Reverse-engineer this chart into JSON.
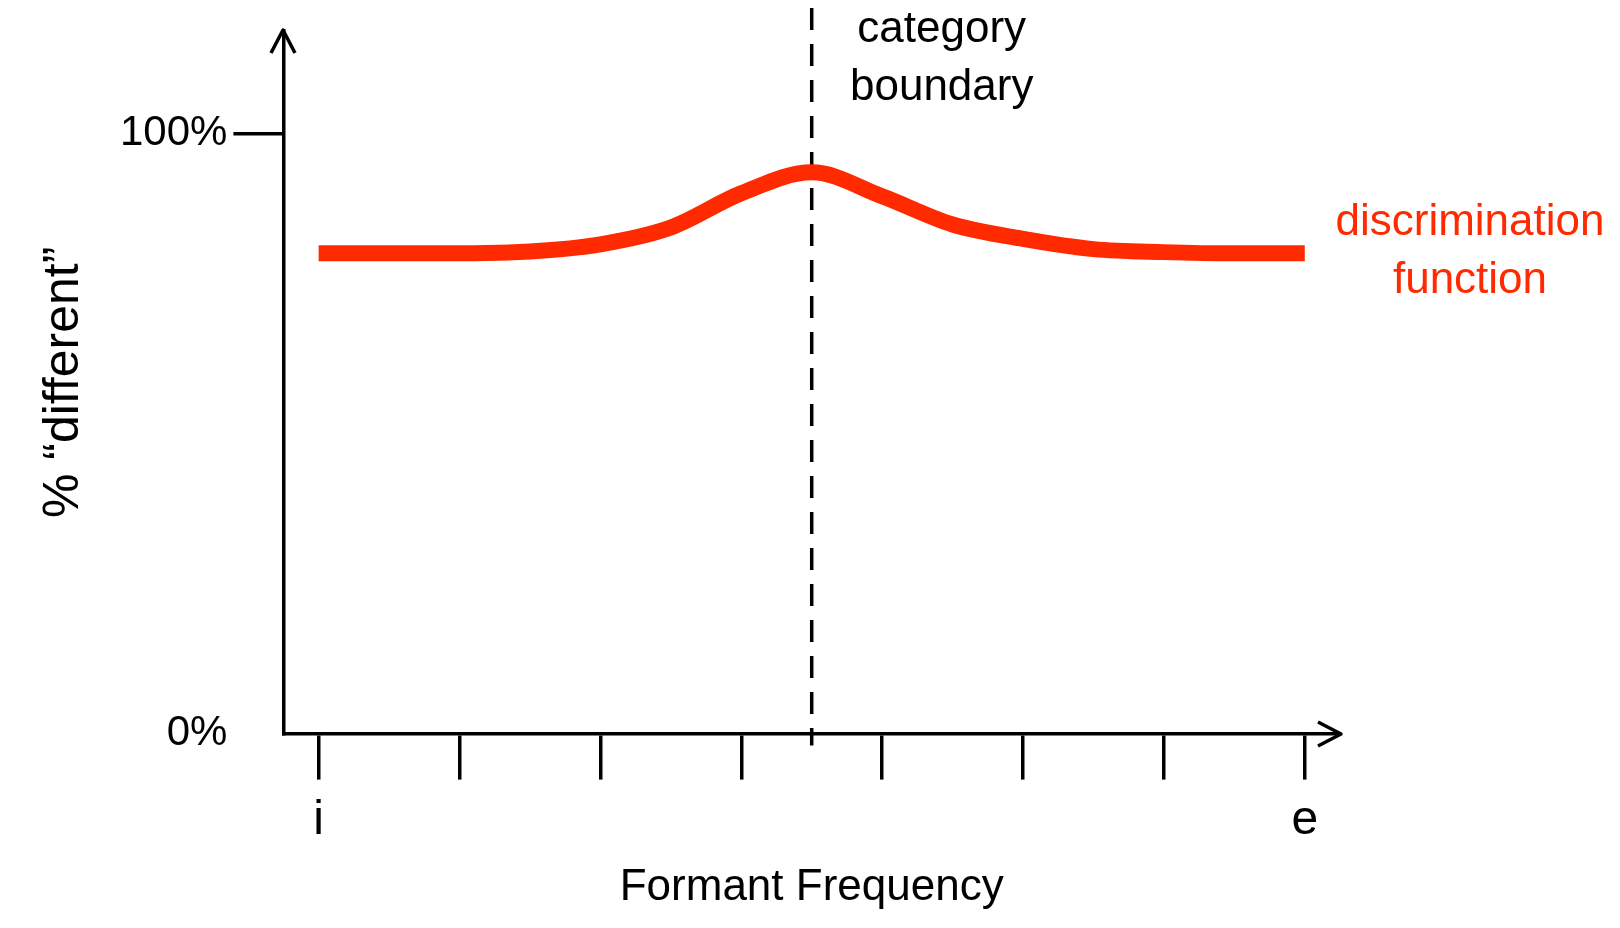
{
  "chart_data": {
    "type": "line",
    "xlabel": "Formant Frequency",
    "ylabel": "% “different”",
    "marker": "none",
    "line_style": "solid",
    "categories": [
      "i",
      null,
      null,
      null,
      null,
      null,
      null,
      null,
      null,
      null,
      null,
      null,
      null,
      null,
      "e"
    ],
    "ylim": [
      0,
      117
    ],
    "yticks": [
      {
        "value": 0,
        "label": "0%"
      },
      {
        "value": 100,
        "label": "100%"
      }
    ],
    "series": [
      {
        "name": "discrimination function",
        "color": "#ff2a00",
        "values": [
          80,
          80,
          80,
          80.3,
          81.5,
          84.3,
          90,
          93.5,
          89.5,
          84.8,
          82.4,
          80.7,
          80.2,
          80,
          80
        ]
      }
    ],
    "ref_lines": [
      {
        "axis": "x",
        "label": "category boundary",
        "line_style": "dashed",
        "color": "#000000"
      }
    ]
  }
}
